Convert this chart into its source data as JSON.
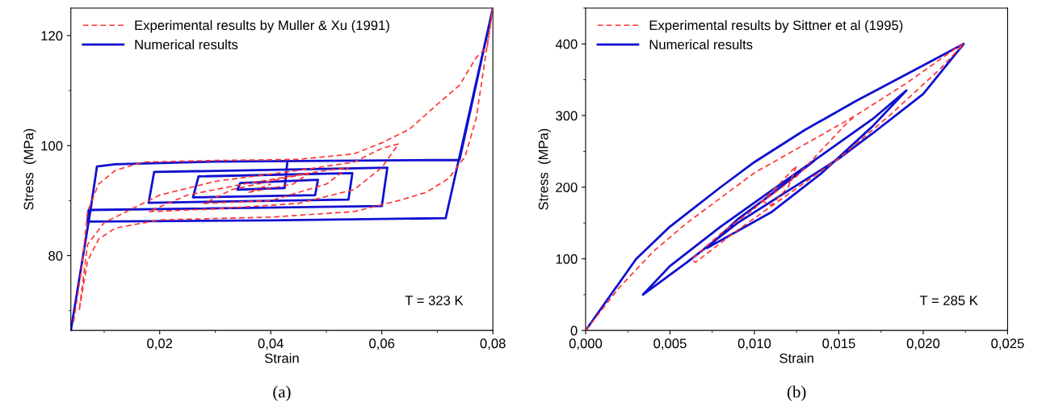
{
  "chart_data": [
    {
      "type": "line",
      "xlabel": "Strain",
      "ylabel": "Stress  (MPa)",
      "xlim": [
        0.004,
        0.08
      ],
      "ylim": [
        66.4,
        125
      ],
      "xticks": [
        {
          "value": 0.02,
          "label": "0,02"
        },
        {
          "value": 0.04,
          "label": "0,04"
        },
        {
          "value": 0.06,
          "label": "0,06"
        },
        {
          "value": 0.08,
          "label": "0,08"
        }
      ],
      "yticks": [
        80,
        100,
        120
      ],
      "grid": false,
      "legend": "top left",
      "annotations": [
        "T = 323 K",
        "(a)"
      ],
      "series": [
        {
          "name": "Experimental results by Muller & Xu (1991)",
          "color": "#ff3333",
          "line_style": "dashed",
          "x": [
            0.0045,
            0.006,
            0.007,
            0.009,
            0.012,
            0.017,
            0.03,
            0.045,
            0.055,
            0.06,
            0.065,
            0.07,
            0.074,
            0.077,
            0.079,
            0.08,
            0.0785,
            0.077,
            0.075,
            0.072,
            0.068,
            0.063,
            0.055,
            0.04,
            0.02,
            0.012,
            0.009,
            0.007,
            0.0055,
            0.007,
            0.01,
            0.014,
            0.02,
            0.03,
            0.045,
            0.055,
            0.06,
            0.063,
            0.06,
            0.055,
            0.045,
            0.03,
            0.018,
            0.025,
            0.035,
            0.05,
            0.054,
            0.05,
            0.04,
            0.028,
            0.033,
            0.042,
            0.047,
            0.044,
            0.036,
            0.04
          ],
          "values": [
            68,
            78,
            88,
            93,
            95.5,
            97,
            97.3,
            97.5,
            98.5,
            100.5,
            103,
            107.5,
            111,
            116,
            118,
            125,
            115,
            105,
            98,
            94,
            91.5,
            90,
            88,
            87,
            86.5,
            85,
            83,
            79,
            70,
            82,
            86,
            88,
            91,
            93.5,
            95.5,
            97,
            99.5,
            100.3,
            96,
            92,
            89.5,
            88.5,
            88,
            91,
            93,
            95.5,
            96,
            93,
            90,
            89.5,
            92,
            94,
            95,
            93,
            91.5,
            93
          ]
        },
        {
          "name": "Numerical results",
          "color": "#1010d0",
          "line_style": "solid",
          "x": [
            0.004,
            0.0075,
            0.0087,
            0.012,
            0.03,
            0.074,
            0.08,
            0.0715,
            0.04,
            0.007,
            0.0072,
            0.06,
            0.061,
            0.019,
            0.018,
            0.054,
            0.0547,
            0.027,
            0.026,
            0.048,
            0.0485,
            0.0345,
            0.034,
            0.0425,
            0.043
          ],
          "values": [
            66.4,
            88,
            96.2,
            96.6,
            97.1,
            97.4,
            125,
            86.8,
            86.4,
            86.2,
            88.3,
            89,
            96,
            95.2,
            89.6,
            90.2,
            95,
            94.4,
            90.6,
            91,
            93.8,
            93.2,
            92,
            92.3,
            97.1
          ]
        }
      ]
    },
    {
      "type": "line",
      "xlabel": "Strain",
      "ylabel": "Stress  (MPa)",
      "xlim": [
        0,
        0.025
      ],
      "ylim": [
        0,
        450
      ],
      "xticks": [
        {
          "value": 0,
          "label": "0,000"
        },
        {
          "value": 0.005,
          "label": "0,005"
        },
        {
          "value": 0.01,
          "label": "0,010"
        },
        {
          "value": 0.015,
          "label": "0,015"
        },
        {
          "value": 0.02,
          "label": "0,020"
        },
        {
          "value": 0.025,
          "label": "0,025"
        }
      ],
      "yticks": [
        0,
        100,
        200,
        300,
        400
      ],
      "grid": false,
      "legend": "top left",
      "annotations": [
        "T = 285 K",
        "(b)"
      ],
      "series": [
        {
          "name": "Experimental results by Sittner et al (1995)",
          "color": "#ff3333",
          "line_style": "dashed",
          "x": [
            0,
            0.002,
            0.004,
            0.006,
            0.008,
            0.01,
            0.013,
            0.016,
            0.019,
            0.022,
            0.0224,
            0.021,
            0.018,
            0.015,
            0.012,
            0.009,
            0.0065,
            0.0063,
            0.008,
            0.01,
            0.0115,
            0.0125,
            0.012,
            0.011,
            0.0105,
            0.0125,
            0.0145,
            0.0155,
            0.016
          ],
          "values": [
            0,
            60,
            110,
            150,
            185,
            220,
            260,
            300,
            345,
            395,
            400,
            365,
            300,
            240,
            190,
            140,
            95,
            100,
            135,
            170,
            205,
            230,
            200,
            175,
            180,
            215,
            265,
            290,
            300
          ]
        },
        {
          "name": "Numerical results",
          "color": "#1010d0",
          "line_style": "solid",
          "x": [
            0,
            0.003,
            0.005,
            0.008,
            0.01,
            0.013,
            0.016,
            0.02,
            0.0224,
            0.02,
            0.017,
            0.015,
            0.012,
            0.009,
            0.006,
            0.0034,
            0.005,
            0.008,
            0.011,
            0.014,
            0.017,
            0.019,
            0.017,
            0.014,
            0.011,
            0.0072,
            0.009,
            0.011,
            0.0135
          ],
          "values": [
            0,
            100,
            145,
            200,
            235,
            280,
            320,
            370,
            400,
            330,
            275,
            240,
            195,
            150,
            95,
            50,
            90,
            145,
            195,
            245,
            295,
            335,
            285,
            220,
            165,
            115,
            155,
            190,
            236
          ]
        }
      ]
    }
  ]
}
